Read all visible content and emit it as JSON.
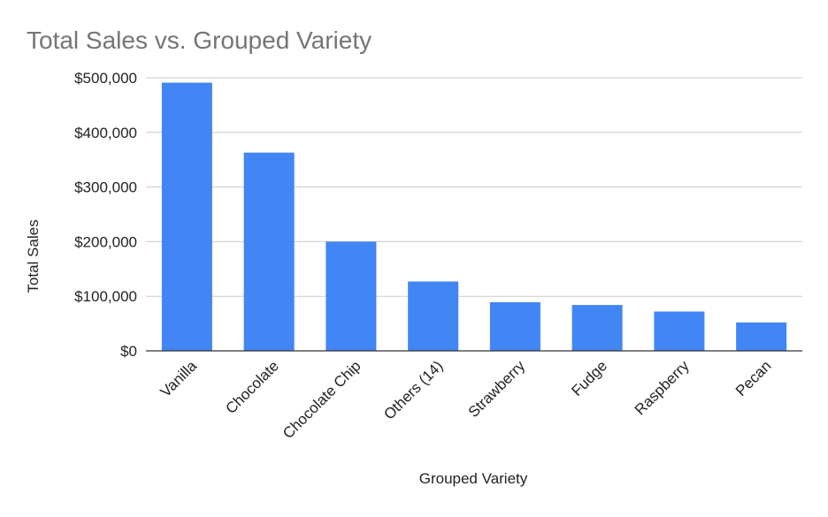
{
  "chart_data": {
    "type": "bar",
    "title": "Total Sales vs. Grouped Variety",
    "xlabel": "Grouped Variety",
    "ylabel": "Total Sales",
    "categories": [
      "Vanilla",
      "Chocolate",
      "Chocolate Chip",
      "Others (14)",
      "Strawberry",
      "Fudge",
      "Raspberry",
      "Pecan"
    ],
    "values": [
      491000,
      363000,
      200000,
      127000,
      89000,
      84000,
      72000,
      52000
    ],
    "ylim": [
      0,
      500000
    ],
    "yticks": [
      0,
      100000,
      200000,
      300000,
      400000,
      500000
    ],
    "ytick_labels": [
      "$0",
      "$100,000",
      "$200,000",
      "$300,000",
      "$400,000",
      "$500,000"
    ],
    "grid": true,
    "legend": "none",
    "colors": {
      "bar": "#4285f4"
    }
  }
}
